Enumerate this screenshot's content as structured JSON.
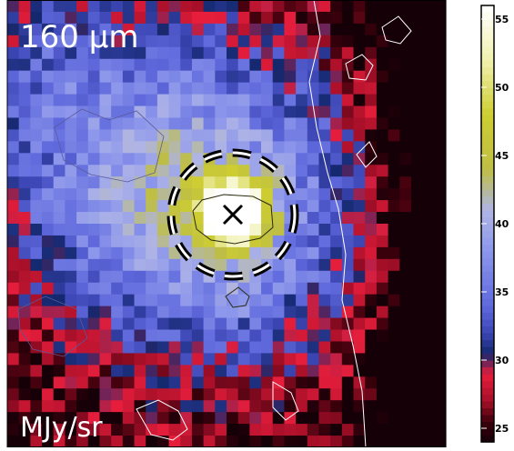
{
  "chart_data": {
    "type": "heatmap",
    "band_label": "160 μm",
    "unit_label": "MJy/sr",
    "colorbar": {
      "tick_labels": [
        "25",
        "30",
        "35",
        "40",
        "45",
        "50",
        "55"
      ],
      "ticks": [
        25,
        30,
        35,
        40,
        45,
        50,
        55
      ],
      "range": [
        24,
        56
      ]
    },
    "peak_marker": "×",
    "aperture": "dashed circle around the peak",
    "peak_value": 54,
    "background_value": 24,
    "grid_size": 38
  }
}
